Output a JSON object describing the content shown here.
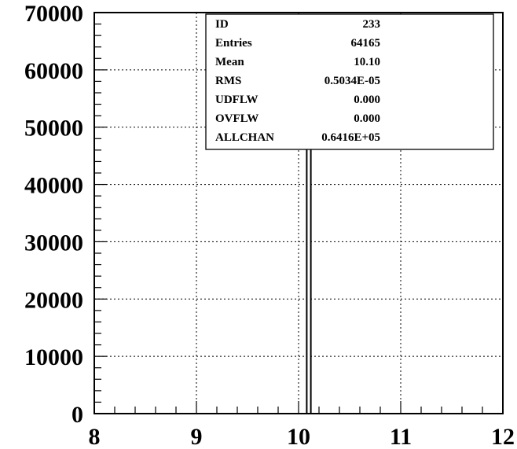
{
  "chart_data": {
    "type": "bar",
    "title": "",
    "xlabel": "",
    "ylabel": "",
    "xlim": [
      8,
      12
    ],
    "ylim": [
      0,
      70000
    ],
    "x_ticks": [
      8,
      9,
      10,
      11,
      12
    ],
    "y_ticks": [
      0,
      10000,
      20000,
      30000,
      40000,
      50000,
      60000,
      70000
    ],
    "grid": true,
    "bins": [
      {
        "x_low": 10.08,
        "x_high": 10.12,
        "value": 64165
      }
    ],
    "stats_box": {
      "placement": "top-right",
      "rows": [
        {
          "label": "ID",
          "value": "233"
        },
        {
          "label": "Entries",
          "value": "64165"
        },
        {
          "label": "Mean",
          "value": "10.10"
        },
        {
          "label": "RMS",
          "value": "0.5034E-05"
        },
        {
          "label": "UDFLW",
          "value": "0.000"
        },
        {
          "label": "OVFLW",
          "value": "0.000"
        },
        {
          "label": "ALLCHAN",
          "value": "0.6416E+05"
        }
      ]
    }
  }
}
